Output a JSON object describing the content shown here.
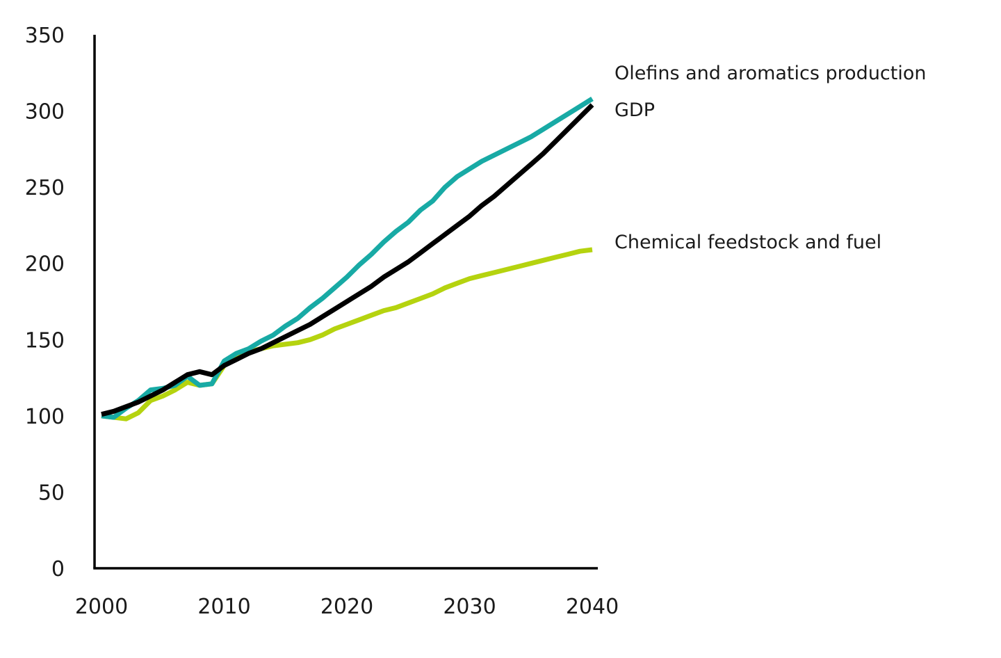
{
  "chart_data": {
    "type": "line",
    "title": "",
    "xlabel": "",
    "ylabel": "",
    "xlim": [
      2000,
      2040
    ],
    "ylim": [
      0,
      350
    ],
    "x_ticks": [
      "2000",
      "2010",
      "2020",
      "2030",
      "2040"
    ],
    "y_ticks": [
      "0",
      "50",
      "100",
      "150",
      "200",
      "250",
      "300",
      "350"
    ],
    "grid": false,
    "legend": "inline-right",
    "x": [
      2000,
      2001,
      2002,
      2003,
      2004,
      2005,
      2006,
      2007,
      2008,
      2009,
      2010,
      2011,
      2012,
      2013,
      2014,
      2015,
      2016,
      2017,
      2018,
      2019,
      2020,
      2021,
      2022,
      2023,
      2024,
      2025,
      2026,
      2027,
      2028,
      2029,
      2030,
      2031,
      2032,
      2033,
      2034,
      2035,
      2036,
      2037,
      2038,
      2039,
      2040
    ],
    "series": [
      {
        "name": "Olefins and aromatics production",
        "color": "#18aaa5",
        "values": [
          100,
          99,
          105,
          110,
          117,
          118,
          120,
          126,
          120,
          121,
          136,
          141,
          144,
          149,
          153,
          159,
          164,
          171,
          177,
          184,
          191,
          199,
          206,
          214,
          221,
          227,
          235,
          241,
          250,
          257,
          262,
          267,
          271,
          275,
          279,
          283,
          288,
          293,
          298,
          303,
          308
        ]
      },
      {
        "name": "GDP",
        "color": "#000000",
        "values": [
          101,
          103,
          106,
          109,
          113,
          117,
          122,
          127,
          129,
          127,
          133,
          137,
          141,
          144,
          148,
          152,
          156,
          160,
          165,
          170,
          175,
          180,
          185,
          191,
          196,
          201,
          207,
          213,
          219,
          225,
          231,
          238,
          244,
          251,
          258,
          265,
          272,
          280,
          288,
          296,
          304
        ]
      },
      {
        "name": "Chemical feedstock and fuel",
        "color": "#b5d30f",
        "values": [
          100,
          99,
          98,
          102,
          110,
          113,
          117,
          122,
          120,
          121,
          133,
          139,
          142,
          144,
          146,
          147,
          148,
          150,
          153,
          157,
          160,
          163,
          166,
          169,
          171,
          174,
          177,
          180,
          184,
          187,
          190,
          192,
          194,
          196,
          198,
          200,
          202,
          204,
          206,
          208,
          209
        ]
      }
    ]
  }
}
